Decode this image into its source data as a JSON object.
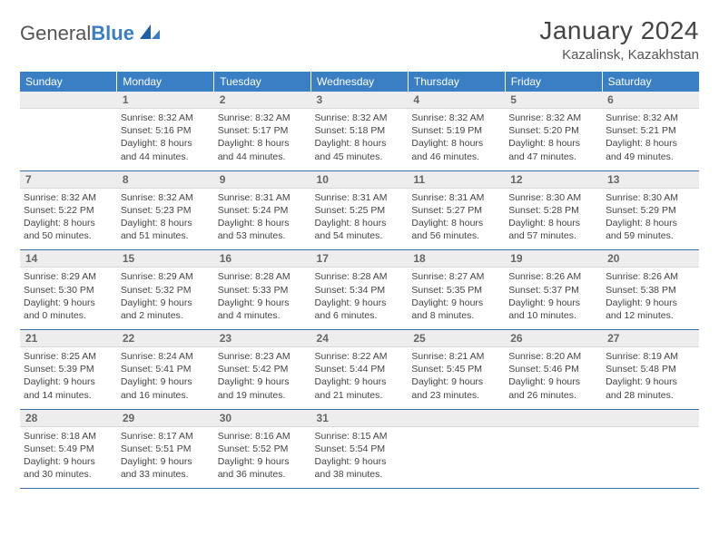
{
  "logo": {
    "text_a": "General",
    "text_b": "Blue"
  },
  "title": "January 2024",
  "location": "Kazalinsk, Kazakhstan",
  "colors": {
    "header_bg": "#3a7fc4",
    "header_text": "#ffffff",
    "daynum_bg": "#ededed",
    "daynum_text": "#666666",
    "body_text": "#444444",
    "row_border": "#3a6fa8",
    "logo_blue": "#3a7fc4"
  },
  "weekdays": [
    "Sunday",
    "Monday",
    "Tuesday",
    "Wednesday",
    "Thursday",
    "Friday",
    "Saturday"
  ],
  "weeks": [
    [
      {
        "empty": true
      },
      {
        "n": "1",
        "sr": "8:32 AM",
        "ss": "5:16 PM",
        "dl": "8 hours and 44 minutes."
      },
      {
        "n": "2",
        "sr": "8:32 AM",
        "ss": "5:17 PM",
        "dl": "8 hours and 44 minutes."
      },
      {
        "n": "3",
        "sr": "8:32 AM",
        "ss": "5:18 PM",
        "dl": "8 hours and 45 minutes."
      },
      {
        "n": "4",
        "sr": "8:32 AM",
        "ss": "5:19 PM",
        "dl": "8 hours and 46 minutes."
      },
      {
        "n": "5",
        "sr": "8:32 AM",
        "ss": "5:20 PM",
        "dl": "8 hours and 47 minutes."
      },
      {
        "n": "6",
        "sr": "8:32 AM",
        "ss": "5:21 PM",
        "dl": "8 hours and 49 minutes."
      }
    ],
    [
      {
        "n": "7",
        "sr": "8:32 AM",
        "ss": "5:22 PM",
        "dl": "8 hours and 50 minutes."
      },
      {
        "n": "8",
        "sr": "8:32 AM",
        "ss": "5:23 PM",
        "dl": "8 hours and 51 minutes."
      },
      {
        "n": "9",
        "sr": "8:31 AM",
        "ss": "5:24 PM",
        "dl": "8 hours and 53 minutes."
      },
      {
        "n": "10",
        "sr": "8:31 AM",
        "ss": "5:25 PM",
        "dl": "8 hours and 54 minutes."
      },
      {
        "n": "11",
        "sr": "8:31 AM",
        "ss": "5:27 PM",
        "dl": "8 hours and 56 minutes."
      },
      {
        "n": "12",
        "sr": "8:30 AM",
        "ss": "5:28 PM",
        "dl": "8 hours and 57 minutes."
      },
      {
        "n": "13",
        "sr": "8:30 AM",
        "ss": "5:29 PM",
        "dl": "8 hours and 59 minutes."
      }
    ],
    [
      {
        "n": "14",
        "sr": "8:29 AM",
        "ss": "5:30 PM",
        "dl": "9 hours and 0 minutes."
      },
      {
        "n": "15",
        "sr": "8:29 AM",
        "ss": "5:32 PM",
        "dl": "9 hours and 2 minutes."
      },
      {
        "n": "16",
        "sr": "8:28 AM",
        "ss": "5:33 PM",
        "dl": "9 hours and 4 minutes."
      },
      {
        "n": "17",
        "sr": "8:28 AM",
        "ss": "5:34 PM",
        "dl": "9 hours and 6 minutes."
      },
      {
        "n": "18",
        "sr": "8:27 AM",
        "ss": "5:35 PM",
        "dl": "9 hours and 8 minutes."
      },
      {
        "n": "19",
        "sr": "8:26 AM",
        "ss": "5:37 PM",
        "dl": "9 hours and 10 minutes."
      },
      {
        "n": "20",
        "sr": "8:26 AM",
        "ss": "5:38 PM",
        "dl": "9 hours and 12 minutes."
      }
    ],
    [
      {
        "n": "21",
        "sr": "8:25 AM",
        "ss": "5:39 PM",
        "dl": "9 hours and 14 minutes."
      },
      {
        "n": "22",
        "sr": "8:24 AM",
        "ss": "5:41 PM",
        "dl": "9 hours and 16 minutes."
      },
      {
        "n": "23",
        "sr": "8:23 AM",
        "ss": "5:42 PM",
        "dl": "9 hours and 19 minutes."
      },
      {
        "n": "24",
        "sr": "8:22 AM",
        "ss": "5:44 PM",
        "dl": "9 hours and 21 minutes."
      },
      {
        "n": "25",
        "sr": "8:21 AM",
        "ss": "5:45 PM",
        "dl": "9 hours and 23 minutes."
      },
      {
        "n": "26",
        "sr": "8:20 AM",
        "ss": "5:46 PM",
        "dl": "9 hours and 26 minutes."
      },
      {
        "n": "27",
        "sr": "8:19 AM",
        "ss": "5:48 PM",
        "dl": "9 hours and 28 minutes."
      }
    ],
    [
      {
        "n": "28",
        "sr": "8:18 AM",
        "ss": "5:49 PM",
        "dl": "9 hours and 30 minutes."
      },
      {
        "n": "29",
        "sr": "8:17 AM",
        "ss": "5:51 PM",
        "dl": "9 hours and 33 minutes."
      },
      {
        "n": "30",
        "sr": "8:16 AM",
        "ss": "5:52 PM",
        "dl": "9 hours and 36 minutes."
      },
      {
        "n": "31",
        "sr": "8:15 AM",
        "ss": "5:54 PM",
        "dl": "9 hours and 38 minutes."
      },
      {
        "empty": true
      },
      {
        "empty": true
      },
      {
        "empty": true
      }
    ]
  ],
  "labels": {
    "sunrise": "Sunrise:",
    "sunset": "Sunset:",
    "daylight": "Daylight:"
  }
}
